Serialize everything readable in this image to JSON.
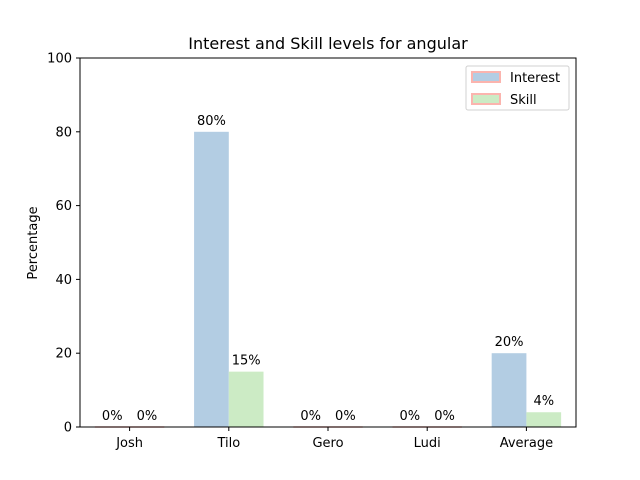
{
  "chart_data": {
    "type": "bar",
    "title": "Interest and Skill levels for angular",
    "xlabel": "",
    "ylabel": "Percentage",
    "ylim": [
      0,
      100
    ],
    "yticks": [
      0,
      20,
      40,
      60,
      80,
      100
    ],
    "categories": [
      "Josh",
      "Tilo",
      "Gero",
      "Ludi",
      "Average"
    ],
    "series": [
      {
        "name": "Interest",
        "color": "#b3cde3",
        "edge_color": "#fbb4ae",
        "values": [
          0,
          80,
          0,
          0,
          20
        ],
        "labels": [
          "0%",
          "80%",
          "0%",
          "0%",
          "20%"
        ]
      },
      {
        "name": "Skill",
        "color": "#ccebc5",
        "edge_color": "#fbb4ae",
        "values": [
          0,
          15,
          0,
          0,
          4
        ],
        "labels": [
          "0%",
          "15%",
          "0%",
          "0%",
          "4%"
        ]
      }
    ],
    "legend_position": "top-right",
    "grid": false
  }
}
